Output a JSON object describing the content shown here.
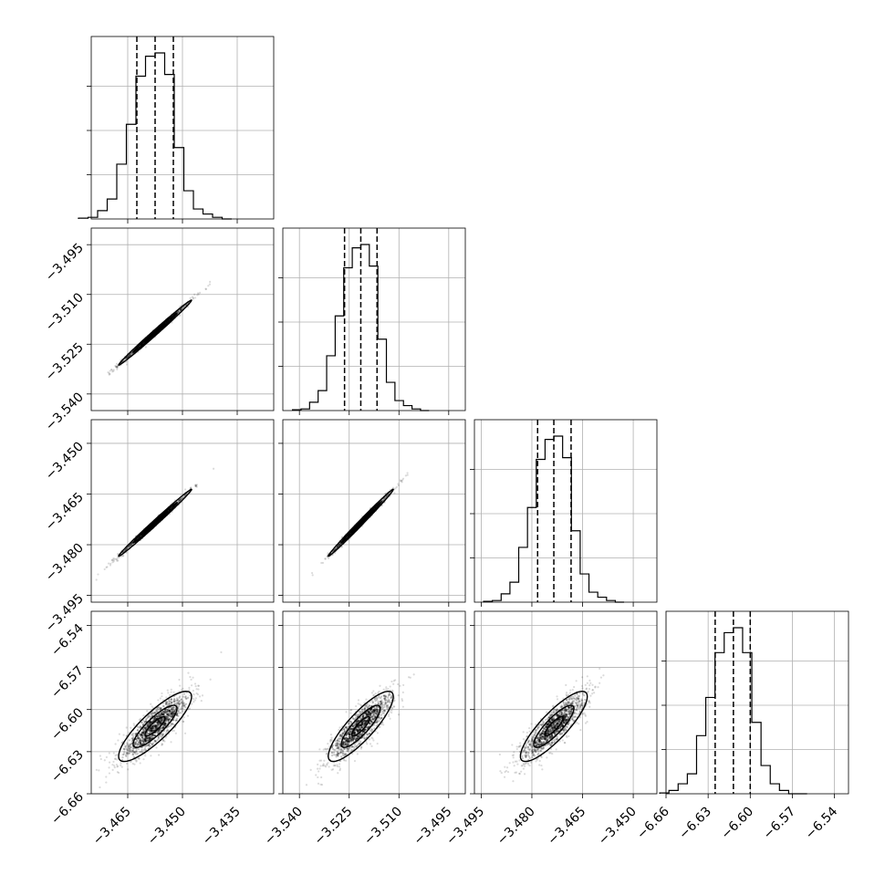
{
  "chart_data": {
    "type": "corner",
    "parameters": [
      {
        "range": [
          -3.475,
          -3.425
        ],
        "ticks": [
          "−3.465",
          "−3.450",
          "−3.435"
        ],
        "tick_values": [
          -3.465,
          -3.45,
          -3.435
        ],
        "median": -3.4575,
        "q16": -3.4625,
        "q84": -3.4525
      },
      {
        "range": [
          -3.545,
          -3.49
        ],
        "ticks": [
          "−3.540",
          "−3.525",
          "−3.510",
          "−3.495"
        ],
        "tick_values": [
          -3.54,
          -3.525,
          -3.51,
          -3.495
        ],
        "median": -3.5215,
        "q16": -3.5264,
        "q84": -3.5166
      },
      {
        "range": [
          -3.497,
          -3.443
        ],
        "ticks": [
          "−3.495",
          "−3.480",
          "−3.465",
          "−3.450"
        ],
        "tick_values": [
          -3.495,
          -3.48,
          -3.465,
          -3.45
        ],
        "median": -3.4735,
        "q16": -3.4783,
        "q84": -3.4684
      },
      {
        "range": [
          -6.66,
          -6.53
        ],
        "ticks": [
          "−6.66",
          "−6.63",
          "−6.60",
          "−6.57",
          "−6.54"
        ],
        "tick_values": [
          -6.66,
          -6.63,
          -6.6,
          -6.57,
          -6.54
        ],
        "median": -6.612,
        "q16": -6.625,
        "q84": -6.6
      }
    ],
    "histograms": [
      [
        0.005,
        0.01,
        0.05,
        0.12,
        0.33,
        0.57,
        0.86,
        0.98,
        1.0,
        0.87,
        0.43,
        0.17,
        0.06,
        0.03,
        0.01,
        0
      ],
      [
        0.005,
        0.01,
        0.05,
        0.12,
        0.33,
        0.57,
        0.86,
        0.98,
        1.0,
        0.87,
        0.43,
        0.17,
        0.06,
        0.03,
        0.01,
        0
      ],
      [
        0.005,
        0.01,
        0.05,
        0.12,
        0.33,
        0.57,
        0.86,
        0.98,
        1.0,
        0.87,
        0.43,
        0.17,
        0.06,
        0.03,
        0.01,
        0
      ],
      [
        0.005,
        0.02,
        0.06,
        0.12,
        0.35,
        0.58,
        0.85,
        0.97,
        1.0,
        0.85,
        0.43,
        0.17,
        0.06,
        0.02,
        0,
        0
      ]
    ],
    "grid": true,
    "colors": {
      "points": "#000000",
      "contour": "#000000"
    }
  }
}
